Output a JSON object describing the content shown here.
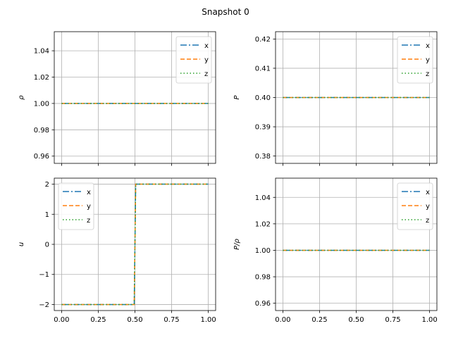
{
  "figure": {
    "title": "Snapshot 0"
  },
  "chart_data": [
    {
      "type": "line",
      "ylabel": "ρ",
      "xlabel": "",
      "xlim": [
        -0.05,
        1.05
      ],
      "ylim": [
        0.9545,
        1.0545
      ],
      "xticks": [
        0.0,
        0.25,
        0.5,
        0.75,
        1.0
      ],
      "xtick_labels": [
        "",
        "",
        "",
        "",
        ""
      ],
      "yticks": [
        0.96,
        0.98,
        1.0,
        1.02,
        1.04
      ],
      "ytick_labels": [
        "0.96",
        "0.98",
        "1.00",
        "1.02",
        "1.04"
      ],
      "grid": true,
      "legend": "top-right",
      "series": [
        {
          "name": "x",
          "color": "#1f77b4",
          "style": "dashdot",
          "x": [
            0,
            1
          ],
          "y": [
            1.0,
            1.0
          ]
        },
        {
          "name": "y",
          "color": "#ff7f0e",
          "style": "dashed",
          "x": [
            0,
            1
          ],
          "y": [
            1.0,
            1.0
          ]
        },
        {
          "name": "z",
          "color": "#2ca02c",
          "style": "dotted",
          "x": [
            0,
            1
          ],
          "y": [
            1.0,
            1.0
          ]
        }
      ]
    },
    {
      "type": "line",
      "ylabel": "P",
      "xlabel": "",
      "xlim": [
        -0.05,
        1.05
      ],
      "ylim": [
        0.3775,
        0.4225
      ],
      "xticks": [
        0.0,
        0.25,
        0.5,
        0.75,
        1.0
      ],
      "xtick_labels": [
        "",
        "",
        "",
        "",
        ""
      ],
      "yticks": [
        0.38,
        0.39,
        0.4,
        0.41,
        0.42
      ],
      "ytick_labels": [
        "0.38",
        "0.39",
        "0.40",
        "0.41",
        "0.42"
      ],
      "grid": true,
      "legend": "top-right",
      "series": [
        {
          "name": "x",
          "color": "#1f77b4",
          "style": "dashdot",
          "x": [
            0,
            1
          ],
          "y": [
            0.4,
            0.4
          ]
        },
        {
          "name": "y",
          "color": "#ff7f0e",
          "style": "dashed",
          "x": [
            0,
            1
          ],
          "y": [
            0.4,
            0.4
          ]
        },
        {
          "name": "z",
          "color": "#2ca02c",
          "style": "dotted",
          "x": [
            0,
            1
          ],
          "y": [
            0.4,
            0.4
          ]
        }
      ]
    },
    {
      "type": "line",
      "ylabel": "u",
      "xlabel": "",
      "xlim": [
        -0.05,
        1.05
      ],
      "ylim": [
        -2.2,
        2.2
      ],
      "xticks": [
        0.0,
        0.25,
        0.5,
        0.75,
        1.0
      ],
      "xtick_labels": [
        "0.00",
        "0.25",
        "0.50",
        "0.75",
        "1.00"
      ],
      "yticks": [
        -2,
        -1,
        0,
        1,
        2
      ],
      "ytick_labels": [
        "−2",
        "−1",
        "0",
        "1",
        "2"
      ],
      "grid": true,
      "legend": "top-left",
      "series": [
        {
          "name": "x",
          "color": "#1f77b4",
          "style": "dashdot",
          "x": [
            0,
            0.495,
            0.505,
            1
          ],
          "y": [
            -2,
            -2,
            2,
            2
          ]
        },
        {
          "name": "y",
          "color": "#ff7f0e",
          "style": "dashed",
          "x": [
            0,
            0.495,
            0.505,
            1
          ],
          "y": [
            -2,
            -2,
            2,
            2
          ]
        },
        {
          "name": "z",
          "color": "#2ca02c",
          "style": "dotted",
          "x": [
            0,
            0.495,
            0.505,
            1
          ],
          "y": [
            -2,
            -2,
            2,
            2
          ]
        }
      ]
    },
    {
      "type": "line",
      "ylabel": "P/ρ",
      "xlabel": "",
      "xlim": [
        -0.05,
        1.05
      ],
      "ylim": [
        0.9545,
        1.0545
      ],
      "xticks": [
        0.0,
        0.25,
        0.5,
        0.75,
        1.0
      ],
      "xtick_labels": [
        "0.00",
        "0.25",
        "0.50",
        "0.75",
        "1.00"
      ],
      "yticks": [
        0.96,
        0.98,
        1.0,
        1.02,
        1.04
      ],
      "ytick_labels": [
        "0.96",
        "0.98",
        "1.00",
        "1.02",
        "1.04"
      ],
      "grid": true,
      "legend": "top-right",
      "series": [
        {
          "name": "x",
          "color": "#1f77b4",
          "style": "dashdot",
          "x": [
            0,
            1
          ],
          "y": [
            1.0,
            1.0
          ]
        },
        {
          "name": "y",
          "color": "#ff7f0e",
          "style": "dashed",
          "x": [
            0,
            1
          ],
          "y": [
            1.0,
            1.0
          ]
        },
        {
          "name": "z",
          "color": "#2ca02c",
          "style": "dotted",
          "x": [
            0,
            1
          ],
          "y": [
            1.0,
            1.0
          ]
        }
      ]
    }
  ]
}
